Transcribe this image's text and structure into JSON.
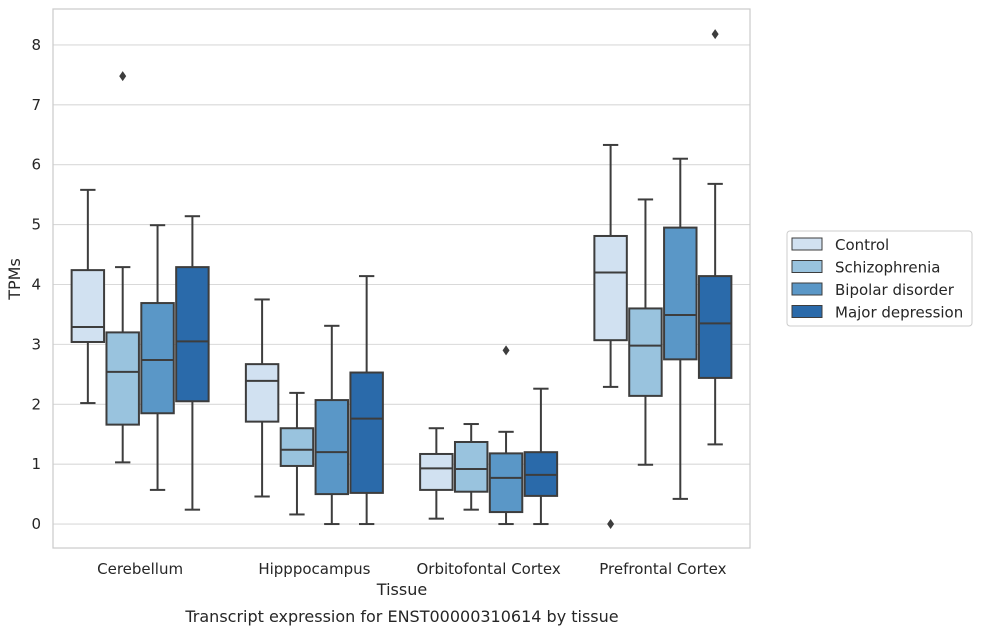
{
  "chart_data": {
    "type": "box",
    "caption": "Transcript expression for ENST00000310614 by tissue",
    "xlabel": "Tissue",
    "ylabel": "TPMs",
    "ylim": [
      -0.4,
      8.6
    ],
    "yticks": [
      0,
      1,
      2,
      3,
      4,
      5,
      6,
      7,
      8
    ],
    "grid": "horizontal",
    "legend_position": "right",
    "categories": [
      "Cerebellum",
      "Hipppocampus",
      "Orbitofontal Cortex",
      "Prefrontal Cortex"
    ],
    "series": [
      {
        "name": "Control",
        "color": "#d1e1f1",
        "boxes": [
          {
            "whisker_low": 2.02,
            "q1": 3.04,
            "median": 3.29,
            "q3": 4.24,
            "whisker_high": 5.58,
            "outliers": []
          },
          {
            "whisker_low": 0.46,
            "q1": 1.71,
            "median": 2.39,
            "q3": 2.67,
            "whisker_high": 3.75,
            "outliers": []
          },
          {
            "whisker_low": 0.09,
            "q1": 0.57,
            "median": 0.93,
            "q3": 1.17,
            "whisker_high": 1.6,
            "outliers": []
          },
          {
            "whisker_low": 2.29,
            "q1": 3.07,
            "median": 4.2,
            "q3": 4.81,
            "whisker_high": 6.33,
            "outliers": [
              0.0
            ]
          }
        ]
      },
      {
        "name": "Schizophrenia",
        "color": "#99c3de",
        "boxes": [
          {
            "whisker_low": 1.03,
            "q1": 1.66,
            "median": 2.54,
            "q3": 3.2,
            "whisker_high": 4.29,
            "outliers": [
              7.48
            ]
          },
          {
            "whisker_low": 0.16,
            "q1": 0.97,
            "median": 1.24,
            "q3": 1.6,
            "whisker_high": 2.19,
            "outliers": []
          },
          {
            "whisker_low": 0.24,
            "q1": 0.54,
            "median": 0.92,
            "q3": 1.37,
            "whisker_high": 1.67,
            "outliers": []
          },
          {
            "whisker_low": 0.99,
            "q1": 2.14,
            "median": 2.98,
            "q3": 3.6,
            "whisker_high": 5.42,
            "outliers": []
          }
        ]
      },
      {
        "name": "Bipolar disorder",
        "color": "#5a97c7",
        "boxes": [
          {
            "whisker_low": 0.57,
            "q1": 1.85,
            "median": 2.74,
            "q3": 3.69,
            "whisker_high": 4.99,
            "outliers": []
          },
          {
            "whisker_low": 0.0,
            "q1": 0.5,
            "median": 1.2,
            "q3": 2.07,
            "whisker_high": 3.31,
            "outliers": []
          },
          {
            "whisker_low": 0.0,
            "q1": 0.2,
            "median": 0.77,
            "q3": 1.18,
            "whisker_high": 1.54,
            "outliers": [
              2.9
            ]
          },
          {
            "whisker_low": 0.42,
            "q1": 2.75,
            "median": 3.49,
            "q3": 4.95,
            "whisker_high": 6.1,
            "outliers": []
          }
        ]
      },
      {
        "name": "Major depression",
        "color": "#2a6aaa",
        "boxes": [
          {
            "whisker_low": 0.24,
            "q1": 2.05,
            "median": 3.05,
            "q3": 4.29,
            "whisker_high": 5.14,
            "outliers": []
          },
          {
            "whisker_low": 0.0,
            "q1": 0.52,
            "median": 1.76,
            "q3": 2.53,
            "whisker_high": 4.14,
            "outliers": []
          },
          {
            "whisker_low": 0.0,
            "q1": 0.47,
            "median": 0.82,
            "q3": 1.2,
            "whisker_high": 2.26,
            "outliers": []
          },
          {
            "whisker_low": 1.33,
            "q1": 2.44,
            "median": 3.35,
            "q3": 4.14,
            "whisker_high": 5.68,
            "outliers": [
              8.18
            ]
          }
        ]
      }
    ]
  }
}
